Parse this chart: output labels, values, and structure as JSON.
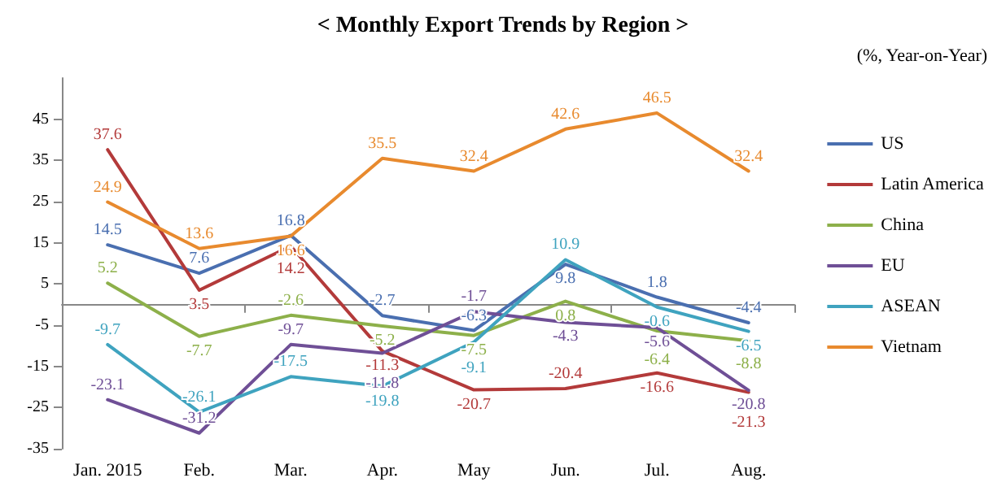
{
  "chart_data": {
    "type": "line",
    "title": "< Monthly Export Trends by Region >",
    "subtitle": "(%, Year-on-Year)",
    "categories": [
      "Jan. 2015",
      "Feb.",
      "Mar.",
      "Apr.",
      "May",
      "Jun.",
      "Jul.",
      "Aug."
    ],
    "series": [
      {
        "name": "US",
        "color": "#4a6fb0",
        "values": [
          14.5,
          7.6,
          16.8,
          -2.7,
          -6.3,
          9.8,
          1.8,
          -4.4
        ]
      },
      {
        "name": "Latin America",
        "color": "#b33a3a",
        "values": [
          37.6,
          3.5,
          14.2,
          -11.3,
          -20.7,
          -20.4,
          -16.6,
          -21.3
        ]
      },
      {
        "name": "China",
        "color": "#8db04a",
        "values": [
          5.2,
          -7.7,
          -2.6,
          -5.2,
          -7.5,
          0.8,
          -6.4,
          -8.8
        ]
      },
      {
        "name": "EU",
        "color": "#6f4f96",
        "values": [
          -23.1,
          -31.2,
          -9.7,
          -11.8,
          -1.7,
          -4.3,
          -5.6,
          -20.8
        ]
      },
      {
        "name": "ASEAN",
        "color": "#3fa3bf",
        "values": [
          -9.7,
          -26.1,
          -17.5,
          -19.8,
          -9.1,
          10.9,
          -0.6,
          -6.5
        ]
      },
      {
        "name": "Vietnam",
        "color": "#e88a2e",
        "values": [
          24.9,
          13.6,
          16.6,
          35.5,
          32.4,
          42.6,
          46.5,
          32.4
        ]
      }
    ],
    "ylim": [
      -35,
      55
    ],
    "yticks": [
      -35,
      -25,
      -15,
      -5,
      5,
      15,
      25,
      35,
      45
    ],
    "grid": false,
    "legend": "right",
    "marker": "none",
    "line_style": "solid",
    "data_labels": true
  }
}
